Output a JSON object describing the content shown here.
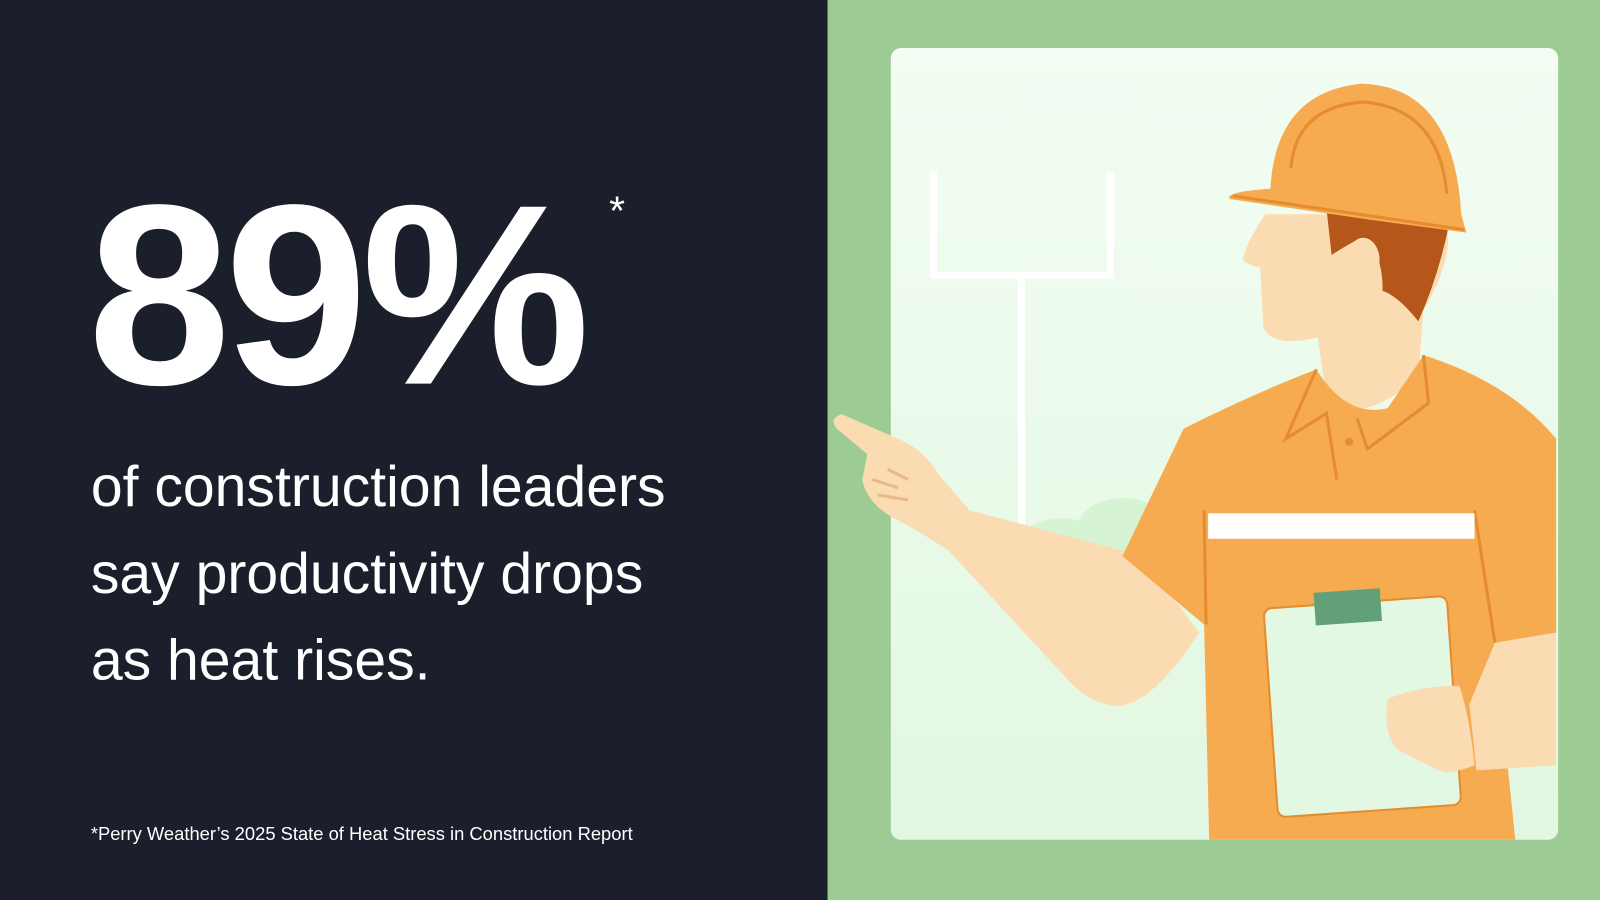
{
  "stat": {
    "value": "89%",
    "mark": "*"
  },
  "statement": {
    "lines": [
      "of construction leaders",
      "say productivity drops",
      "as heat rises."
    ]
  },
  "footnote": "*Perry Weather’s 2025 State of Heat Stress in Construction Report"
}
